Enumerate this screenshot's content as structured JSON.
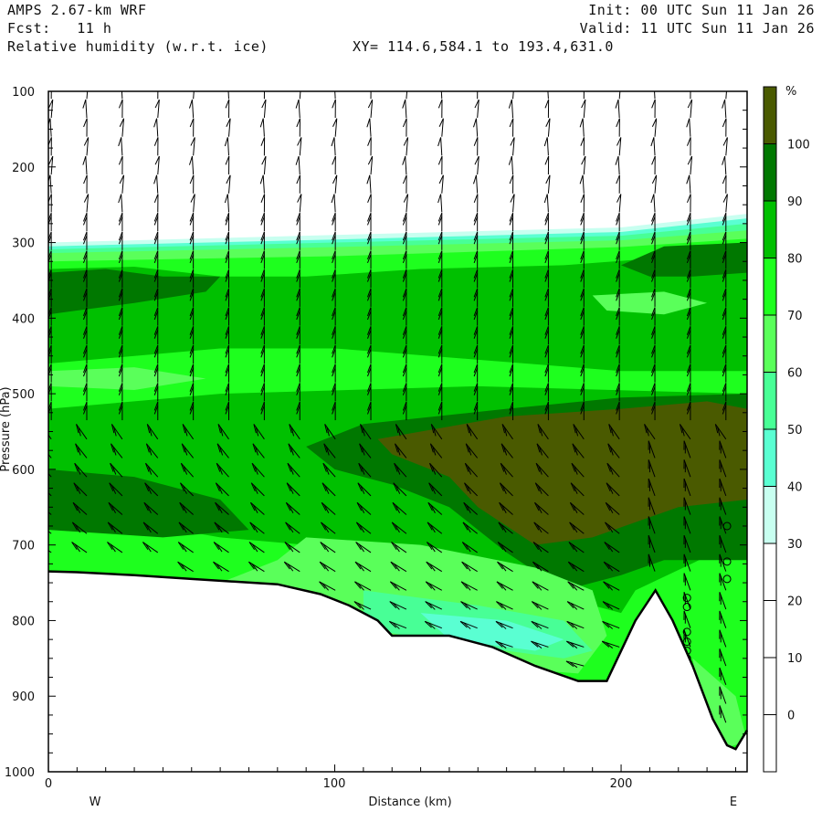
{
  "header": {
    "model": "AMPS 2.67-km WRF",
    "forecast": "Fcst:   11 h",
    "field": "Relative humidity (w.r.t. ice)",
    "xy_range": "XY= 114.6,584.1 to 193.4,631.0",
    "init": "Init: 00 UTC Sun 11 Jan 26",
    "valid": "Valid: 11 UTC Sun 11 Jan 26"
  },
  "chart_data": {
    "type": "heatmap",
    "title": "Relative humidity (w.r.t. ice)",
    "xlabel": "Distance (km)",
    "ylabel": "Pressure (hPa)",
    "xlim": [
      0,
      244
    ],
    "ylim": [
      100,
      1000
    ],
    "xticks": [
      "0",
      "100",
      "200"
    ],
    "xtick_values": [
      0,
      100,
      200
    ],
    "yticks": [
      "100",
      "200",
      "300",
      "400",
      "500",
      "600",
      "700",
      "800",
      "900",
      "1000"
    ],
    "ytick_values": [
      100,
      200,
      300,
      400,
      500,
      600,
      700,
      800,
      900,
      1000
    ],
    "x_end_labels": {
      "left": "W",
      "right": "E"
    },
    "colorbar": {
      "unit": "%",
      "labels": [
        "100",
        "90",
        "80",
        "70",
        "60",
        "50",
        "40",
        "30",
        "20",
        "10",
        "0"
      ],
      "bins": [
        {
          "min": 100,
          "color": "#4a5a00"
        },
        {
          "min": 90,
          "color": "#007800"
        },
        {
          "min": 80,
          "color": "#00c000"
        },
        {
          "min": 70,
          "color": "#1eff1e"
        },
        {
          "min": 60,
          "color": "#5aff5a"
        },
        {
          "min": 50,
          "color": "#48ff96"
        },
        {
          "min": 40,
          "color": "#5affd2"
        },
        {
          "min": 30,
          "color": "#c8fff0"
        },
        {
          "min": 20,
          "color": "#ffffff"
        },
        {
          "min": 10,
          "color": "#ffffff"
        },
        {
          "min": 0,
          "color": "#ffffff"
        },
        {
          "min": -10,
          "color": "#ffffff"
        }
      ]
    },
    "regions": [
      {
        "rh": 30,
        "poly": [
          [
            0,
            300
          ],
          [
            100,
            290
          ],
          [
            200,
            280
          ],
          [
            244,
            262
          ],
          [
            244,
            1000
          ],
          [
            0,
            1000
          ]
        ]
      },
      {
        "rh": 40,
        "poly": [
          [
            0,
            305
          ],
          [
            100,
            296
          ],
          [
            200,
            286
          ],
          [
            244,
            268
          ],
          [
            244,
            1000
          ],
          [
            0,
            1000
          ]
        ]
      },
      {
        "rh": 50,
        "poly": [
          [
            0,
            309
          ],
          [
            100,
            300
          ],
          [
            200,
            291
          ],
          [
            244,
            275
          ],
          [
            244,
            1000
          ],
          [
            0,
            1000
          ]
        ]
      },
      {
        "rh": 60,
        "poly": [
          [
            0,
            314
          ],
          [
            100,
            306
          ],
          [
            200,
            297
          ],
          [
            244,
            284
          ],
          [
            244,
            1000
          ],
          [
            0,
            1000
          ]
        ]
      },
      {
        "rh": 70,
        "poly": [
          [
            0,
            325
          ],
          [
            100,
            318
          ],
          [
            200,
            306
          ],
          [
            244,
            295
          ],
          [
            244,
            1000
          ],
          [
            0,
            1000
          ]
        ]
      },
      {
        "rh": 80,
        "poly": [
          [
            0,
            335
          ],
          [
            30,
            332
          ],
          [
            60,
            345
          ],
          [
            90,
            345
          ],
          [
            130,
            335
          ],
          [
            180,
            330
          ],
          [
            215,
            320
          ],
          [
            244,
            305
          ],
          [
            244,
            470
          ],
          [
            200,
            470
          ],
          [
            150,
            455
          ],
          [
            100,
            440
          ],
          [
            60,
            440
          ],
          [
            30,
            450
          ],
          [
            0,
            460
          ]
        ]
      },
      {
        "rh": 80,
        "poly": [
          [
            0,
            520
          ],
          [
            60,
            500
          ],
          [
            150,
            490
          ],
          [
            244,
            500
          ],
          [
            244,
            690
          ],
          [
            205,
            760
          ],
          [
            200,
            790
          ],
          [
            180,
            770
          ],
          [
            150,
            740
          ],
          [
            120,
            715
          ],
          [
            90,
            700
          ],
          [
            60,
            690
          ],
          [
            30,
            670
          ],
          [
            0,
            660
          ]
        ]
      },
      {
        "rh": 90,
        "poly": [
          [
            0,
            340
          ],
          [
            20,
            335
          ],
          [
            40,
            345
          ],
          [
            60,
            345
          ],
          [
            55,
            365
          ],
          [
            30,
            380
          ],
          [
            10,
            390
          ],
          [
            0,
            395
          ]
        ]
      },
      {
        "rh": 90,
        "poly": [
          [
            200,
            330
          ],
          [
            215,
            305
          ],
          [
            244,
            300
          ],
          [
            244,
            340
          ],
          [
            225,
            345
          ],
          [
            210,
            345
          ]
        ]
      },
      {
        "rh": 90,
        "poly": [
          [
            90,
            570
          ],
          [
            110,
            540
          ],
          [
            160,
            520
          ],
          [
            200,
            505
          ],
          [
            244,
            500
          ],
          [
            244,
            720
          ],
          [
            215,
            720
          ],
          [
            200,
            740
          ],
          [
            180,
            760
          ],
          [
            160,
            710
          ],
          [
            140,
            650
          ],
          [
            120,
            620
          ],
          [
            100,
            600
          ]
        ]
      },
      {
        "rh": 90,
        "poly": [
          [
            0,
            600
          ],
          [
            30,
            610
          ],
          [
            60,
            640
          ],
          [
            70,
            680
          ],
          [
            40,
            690
          ],
          [
            0,
            680
          ]
        ]
      },
      {
        "rh": 100,
        "poly": [
          [
            115,
            560
          ],
          [
            130,
            550
          ],
          [
            160,
            530
          ],
          [
            200,
            520
          ],
          [
            230,
            510
          ],
          [
            244,
            520
          ],
          [
            244,
            640
          ],
          [
            220,
            650
          ],
          [
            190,
            690
          ],
          [
            170,
            700
          ],
          [
            150,
            650
          ],
          [
            140,
            610
          ],
          [
            120,
            580
          ]
        ]
      },
      {
        "rh": 60,
        "poly": [
          [
            0,
            470
          ],
          [
            30,
            465
          ],
          [
            55,
            480
          ],
          [
            30,
            495
          ],
          [
            0,
            490
          ]
        ]
      },
      {
        "rh": 60,
        "poly": [
          [
            190,
            370
          ],
          [
            215,
            365
          ],
          [
            230,
            380
          ],
          [
            215,
            395
          ],
          [
            195,
            390
          ]
        ]
      },
      {
        "rh": 60,
        "poly": [
          [
            60,
            750
          ],
          [
            80,
            720
          ],
          [
            90,
            690
          ],
          [
            130,
            700
          ],
          [
            170,
            730
          ],
          [
            190,
            760
          ],
          [
            195,
            820
          ],
          [
            185,
            870
          ],
          [
            150,
            860
          ],
          [
            120,
            830
          ],
          [
            90,
            780
          ]
        ]
      },
      {
        "rh": 50,
        "poly": [
          [
            110,
            760
          ],
          [
            150,
            780
          ],
          [
            180,
            800
          ],
          [
            190,
            840
          ],
          [
            180,
            850
          ],
          [
            140,
            830
          ],
          [
            110,
            810
          ]
        ]
      },
      {
        "rh": 40,
        "poly": [
          [
            130,
            790
          ],
          [
            160,
            800
          ],
          [
            180,
            825
          ],
          [
            170,
            840
          ],
          [
            140,
            825
          ]
        ]
      },
      {
        "rh": 60,
        "poly": [
          [
            225,
            850
          ],
          [
            240,
            900
          ],
          [
            244,
            960
          ],
          [
            235,
            970
          ],
          [
            228,
            920
          ]
        ]
      }
    ],
    "surface_pressure": [
      [
        0,
        735
      ],
      [
        10,
        736
      ],
      [
        30,
        740
      ],
      [
        50,
        745
      ],
      [
        80,
        752
      ],
      [
        95,
        765
      ],
      [
        105,
        780
      ],
      [
        115,
        800
      ],
      [
        120,
        820
      ],
      [
        140,
        820
      ],
      [
        155,
        835
      ],
      [
        170,
        860
      ],
      [
        185,
        880
      ],
      [
        195,
        880
      ],
      [
        200,
        840
      ],
      [
        205,
        800
      ],
      [
        212,
        760
      ],
      [
        218,
        800
      ],
      [
        225,
        860
      ],
      [
        232,
        930
      ],
      [
        237,
        965
      ],
      [
        240,
        970
      ],
      [
        244,
        945
      ]
    ],
    "calm_points": [
      [
        237,
        675
      ],
      [
        237,
        722
      ],
      [
        237,
        745
      ],
      [
        223,
        770
      ],
      [
        223,
        782
      ],
      [
        223,
        815
      ],
      [
        223,
        828
      ],
      [
        223,
        840
      ],
      [
        223,
        850
      ]
    ]
  }
}
